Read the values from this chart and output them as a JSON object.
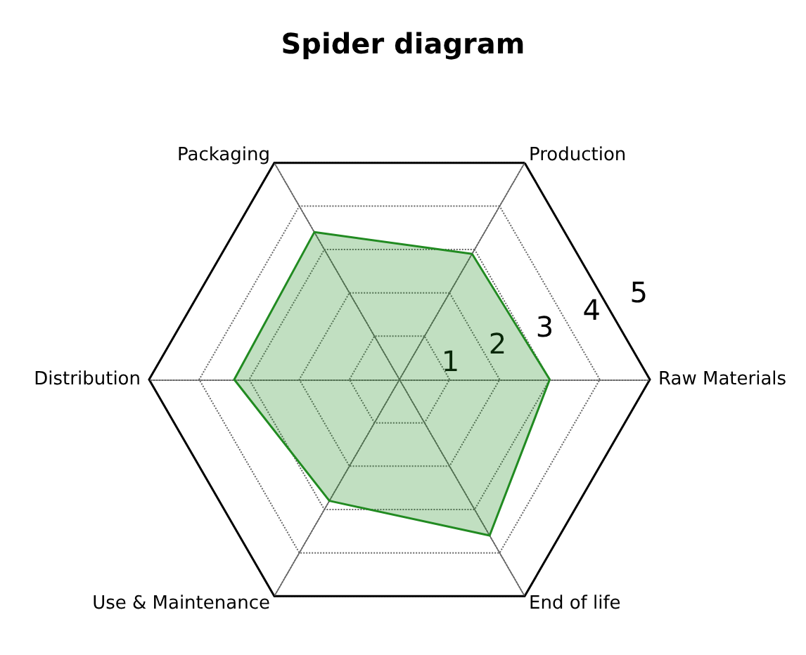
{
  "chart_data": {
    "type": "radar",
    "title": "Spider diagram",
    "categories": [
      "Production",
      "Raw Materials",
      "End of life",
      "Use & Maintenance",
      "Distribution",
      "Packaging"
    ],
    "series": [
      {
        "color": "#228b22",
        "values": [
          2.9,
          3.0,
          3.6,
          2.8,
          3.3,
          3.4
        ]
      }
    ],
    "ylim": [
      0,
      5
    ],
    "yticks": [
      1,
      2,
      3,
      4,
      5
    ],
    "grid": true,
    "legend": false
  }
}
